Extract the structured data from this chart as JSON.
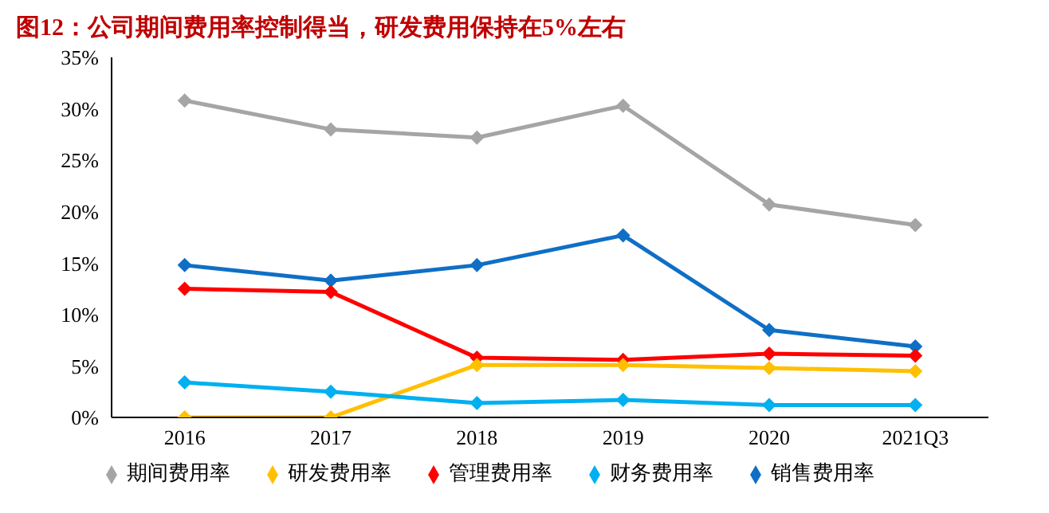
{
  "chart_data": {
    "type": "line",
    "title": "图12：公司期间费用率控制得当，研发费用保持在5%左右",
    "categories": [
      "2016",
      "2017",
      "2018",
      "2019",
      "2020",
      "2021Q3"
    ],
    "series": [
      {
        "name": "销售费用率",
        "color": "#0f6fc6",
        "values": [
          14.8,
          13.3,
          14.8,
          17.7,
          8.5,
          6.9
        ]
      },
      {
        "name": "管理费用率",
        "color": "#ff0000",
        "values": [
          12.5,
          12.2,
          5.8,
          5.6,
          6.2,
          6.0
        ]
      },
      {
        "name": "研发费用率",
        "color": "#ffc000",
        "values": [
          0,
          0,
          5.1,
          5.1,
          4.8,
          4.5
        ]
      },
      {
        "name": "财务费用率",
        "color": "#00b0f0",
        "values": [
          3.4,
          2.5,
          1.4,
          1.7,
          1.2,
          1.2
        ]
      },
      {
        "name": "期间费用率",
        "color": "#a5a5a5",
        "values": [
          30.8,
          28.0,
          27.2,
          30.3,
          20.7,
          18.7
        ]
      }
    ],
    "ylim": [
      0,
      35
    ],
    "yticks": [
      {
        "value": 0,
        "label": "0%"
      },
      {
        "value": 5,
        "label": "5%"
      },
      {
        "value": 10,
        "label": "10%"
      },
      {
        "value": 15,
        "label": "15%"
      },
      {
        "value": 20,
        "label": "20%"
      },
      {
        "value": 25,
        "label": "25%"
      },
      {
        "value": 30,
        "label": "30%"
      },
      {
        "value": 35,
        "label": "35%"
      }
    ],
    "grid": false,
    "legend": "bottom",
    "marker": "diamond",
    "line_style": "solid"
  }
}
